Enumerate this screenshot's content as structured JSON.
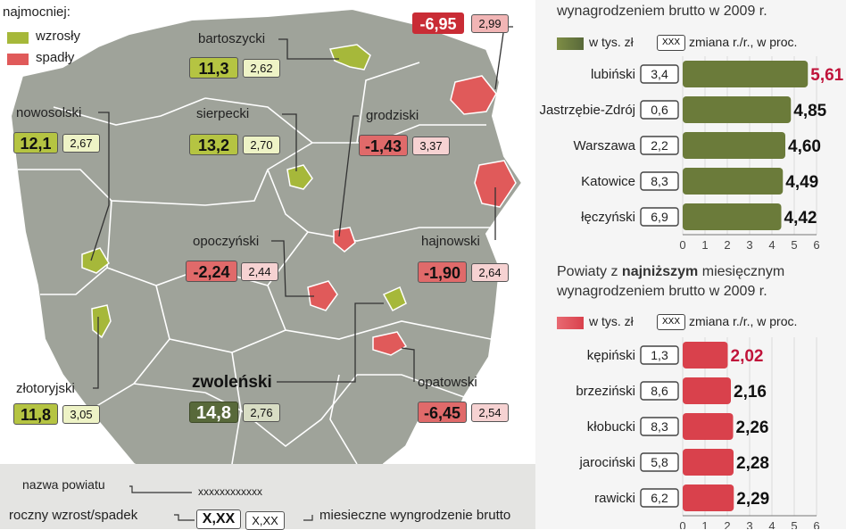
{
  "legend": {
    "heading_fragment": "najmocniej:",
    "up_label": "wzrosły",
    "down_label": "spadły",
    "up_color": "#a6b83a",
    "down_color": "#e05a5a",
    "dark_color": "#58693a"
  },
  "map": {
    "districts": [
      {
        "name": "bartoszycki",
        "salary": "11,3",
        "change": "2,62",
        "kind": "up"
      },
      {
        "name": "nowosolski",
        "salary": "12,1",
        "change": "2,67",
        "kind": "up"
      },
      {
        "name": "sierpecki",
        "salary": "13,2",
        "change": "2,70",
        "kind": "up"
      },
      {
        "name": "grodziski",
        "salary": "-1,43",
        "change": "3,37",
        "kind": "down"
      },
      {
        "name": "opoczyński",
        "salary": "-2,24",
        "change": "2,44",
        "kind": "down"
      },
      {
        "name": "hajnowski",
        "salary": "-1,90",
        "change": "2,64",
        "kind": "down"
      },
      {
        "name": "złotoryjski",
        "salary": "11,8",
        "change": "3,05",
        "kind": "up"
      },
      {
        "name": "zwoleński",
        "salary": "14,8",
        "change": "2,76",
        "kind": "dark"
      },
      {
        "name": "opatowski",
        "salary": "-6,45",
        "change": "2,54",
        "kind": "down"
      }
    ],
    "top_box": {
      "salary": "-6,95",
      "change": "2,99"
    }
  },
  "key": {
    "name_label": "nazwa powiatu",
    "name_sample": "xxxxxxxxxxxx",
    "change_label": "roczny wzrost/spadek",
    "change_sample": "X,XX",
    "salary_sample": "X,XX",
    "salary_label": "miesieczne wyngrodzenie brutto"
  },
  "top_chart": {
    "header_line2": "wynagrodzeniem brutto w 2009 r.",
    "legend_value": "w tys. zł",
    "legend_change_box": "XXX",
    "legend_change": "zmiana r./r., w proc."
  },
  "bottom_chart": {
    "header_pre": "Powiaty z",
    "header_bold": "najniższym",
    "header_post": "miesięcznym",
    "header_line2": "wynagrodzeniem brutto w 2009 r.",
    "legend_value": "w tys. zł",
    "legend_change_box": "XXX",
    "legend_change": "zmiana r./r., w proc."
  },
  "chart_data": [
    {
      "type": "bar",
      "orientation": "horizontal",
      "categories": [
        "lubiński",
        "Jastrzębie-Zdrój",
        "Warszawa",
        "Katowice",
        "łęczyński"
      ],
      "values": [
        5.61,
        4.85,
        4.6,
        4.49,
        4.42
      ],
      "value_labels": [
        "5,61",
        "4,85",
        "4,60",
        "4,49",
        "4,42"
      ],
      "changes": [
        "3,4",
        "0,6",
        "2,2",
        "8,3",
        "6,9"
      ],
      "xlim": [
        0,
        6
      ],
      "xticks": [
        "0",
        "1",
        "2",
        "3",
        "4",
        "5",
        "6"
      ],
      "bar_color": "#6b7b3a",
      "highlight_color": "#c0133a"
    },
    {
      "type": "bar",
      "orientation": "horizontal",
      "categories": [
        "kępiński",
        "brzeziński",
        "kłobucki",
        "jarociński",
        "rawicki"
      ],
      "values": [
        2.02,
        2.16,
        2.26,
        2.28,
        2.29
      ],
      "value_labels": [
        "2,02",
        "2,16",
        "2,26",
        "2,28",
        "2,29"
      ],
      "changes": [
        "1,3",
        "8,6",
        "8,3",
        "5,8",
        "6,2"
      ],
      "xlim": [
        0,
        6
      ],
      "xticks": [
        "0",
        "1",
        "2",
        "3",
        "4",
        "5",
        "6"
      ],
      "bar_color": "#d9414c",
      "highlight_color": "#c0133a"
    }
  ]
}
